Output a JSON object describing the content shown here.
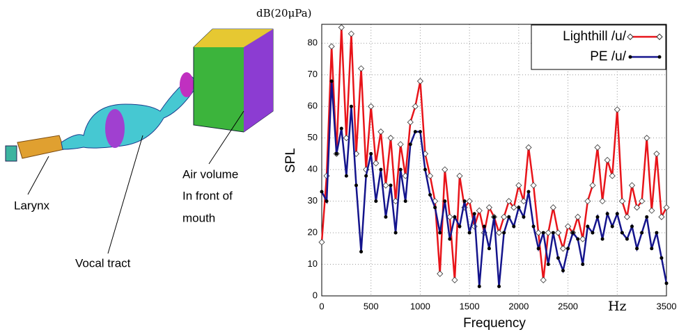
{
  "illustration": {
    "labels": [
      "Larynx",
      "Vocal tract",
      "Air volume",
      "In front of",
      "mouth"
    ]
  },
  "chart_data": {
    "type": "line",
    "x_label": "Frequency",
    "y_label": "SPL",
    "y_unit": "dB(20μPa)",
    "x": [
      0,
      50,
      100,
      150,
      200,
      250,
      300,
      350,
      400,
      450,
      500,
      550,
      600,
      650,
      700,
      750,
      800,
      850,
      900,
      950,
      1000,
      1050,
      1100,
      1150,
      1200,
      1250,
      1300,
      1350,
      1400,
      1450,
      1500,
      1550,
      1600,
      1650,
      1700,
      1750,
      1800,
      1850,
      1900,
      1950,
      2000,
      2050,
      2100,
      2150,
      2200,
      2250,
      2300,
      2350,
      2400,
      2450,
      2500,
      2550,
      2600,
      2650,
      2700,
      2750,
      2800,
      2850,
      2900,
      2950,
      3000,
      3050,
      3100,
      3150,
      3200,
      3250,
      3300,
      3350,
      3400,
      3450,
      3500
    ],
    "series": [
      {
        "name": "Lighthill /u/",
        "color": "#e8141a",
        "marker": "diamond",
        "values": [
          17,
          38,
          79,
          45,
          85,
          50,
          83,
          45,
          72,
          40,
          60,
          42,
          52,
          35,
          50,
          30,
          48,
          38,
          55,
          60,
          68,
          45,
          38,
          30,
          7,
          40,
          25,
          5,
          38,
          28,
          30,
          22,
          27,
          20,
          28,
          25,
          20,
          25,
          30,
          28,
          35,
          30,
          47,
          35,
          20,
          5,
          20,
          28,
          20,
          15,
          22,
          20,
          25,
          18,
          30,
          35,
          47,
          30,
          43,
          38,
          59,
          30,
          25,
          35,
          28,
          30,
          50,
          27,
          45,
          25,
          28
        ]
      },
      {
        "name": "PE /u/",
        "color": "#14148c",
        "marker": "dot",
        "values": [
          33,
          30,
          68,
          45,
          53,
          38,
          60,
          35,
          14,
          38,
          45,
          30,
          40,
          25,
          35,
          20,
          40,
          30,
          48,
          52,
          52,
          40,
          32,
          28,
          20,
          30,
          18,
          25,
          22,
          30,
          20,
          26,
          3,
          22,
          15,
          25,
          3,
          20,
          25,
          22,
          28,
          25,
          33,
          22,
          15,
          20,
          10,
          20,
          12,
          8,
          15,
          20,
          18,
          10,
          22,
          20,
          25,
          18,
          26,
          22,
          26,
          20,
          18,
          22,
          15,
          20,
          25,
          15,
          20,
          12,
          4
        ]
      }
    ],
    "xlim": [
      0,
      3500
    ],
    "ylim": [
      0,
      86
    ],
    "xticks": [
      0,
      500,
      1000,
      1500,
      2000,
      2500,
      {
        "value": 3000,
        "label": "Hz"
      },
      3500
    ],
    "yticks": [
      0,
      10,
      20,
      30,
      40,
      50,
      60,
      70,
      80
    ],
    "grid": true,
    "legend": "upper right"
  }
}
